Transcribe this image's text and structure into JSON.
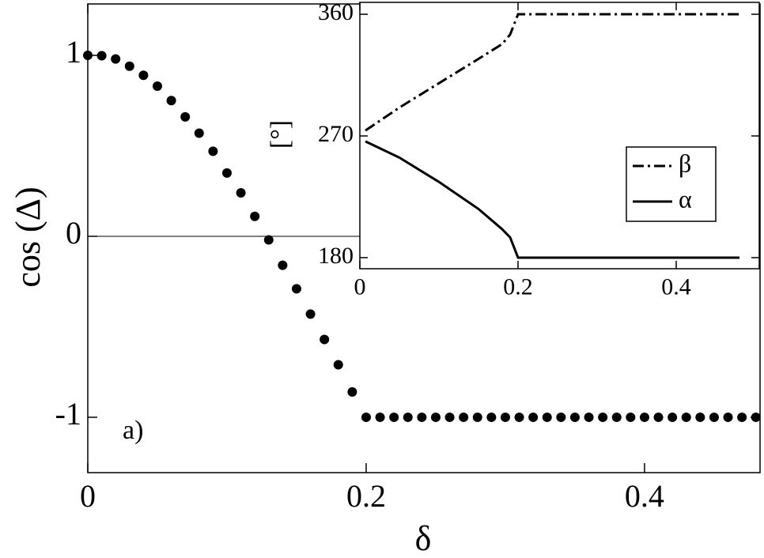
{
  "chart_data": [
    {
      "type": "scatter",
      "x_label": "δ",
      "y_label": "cos (Δ)",
      "annotation": "a)",
      "color": "#000000",
      "x": [
        0,
        0.01,
        0.02,
        0.03,
        0.04,
        0.05,
        0.06,
        0.07,
        0.08,
        0.09,
        0.1,
        0.11,
        0.12,
        0.13,
        0.14,
        0.15,
        0.16,
        0.17,
        0.18,
        0.19,
        0.2,
        0.21,
        0.22,
        0.23,
        0.24,
        0.25,
        0.26,
        0.27,
        0.28,
        0.29,
        0.3,
        0.31,
        0.32,
        0.33,
        0.34,
        0.35,
        0.36,
        0.37,
        0.38,
        0.39,
        0.4,
        0.41,
        0.42,
        0.43,
        0.44,
        0.45,
        0.46,
        0.47,
        0.48
      ],
      "values": [
        1,
        0.998,
        0.98,
        0.94,
        0.89,
        0.83,
        0.75,
        0.66,
        0.57,
        0.47,
        0.35,
        0.24,
        0.11,
        -0.02,
        -0.16,
        -0.29,
        -0.43,
        -0.57,
        -0.71,
        -0.86,
        -1,
        -1,
        -1,
        -1,
        -1,
        -1,
        -1,
        -1,
        -1,
        -1,
        -1,
        -1,
        -1,
        -1,
        -1,
        -1,
        -1,
        -1,
        -1,
        -1,
        -1,
        -1,
        -1,
        -1,
        -1,
        -1,
        -1,
        -1,
        -1
      ],
      "xlim": [
        0,
        0.483
      ],
      "ylim": [
        -1.306,
        1.284
      ],
      "xticks": [
        0,
        0.2,
        0.4
      ],
      "yticks": [
        -1,
        0,
        1
      ]
    },
    {
      "type": "line",
      "y_label": "[°]",
      "legend": "right",
      "x": [
        0.007,
        0.05,
        0.1,
        0.15,
        0.18,
        0.19,
        0.2,
        0.48
      ],
      "series": [
        {
          "name": "β",
          "color": "#000000",
          "dash": "dashdot",
          "values": [
            274,
            291,
            309,
            327,
            338,
            345,
            360,
            360
          ]
        },
        {
          "name": "α",
          "color": "#000000",
          "dash": "solid",
          "values": [
            266,
            254,
            236,
            216,
            201,
            195,
            180,
            180
          ]
        }
      ],
      "xlim": [
        0,
        0.505
      ],
      "ylim": [
        171.8,
        368.8
      ],
      "xticks": [
        0,
        0.2,
        0.4
      ],
      "yticks": [
        180,
        270,
        360
      ]
    }
  ]
}
